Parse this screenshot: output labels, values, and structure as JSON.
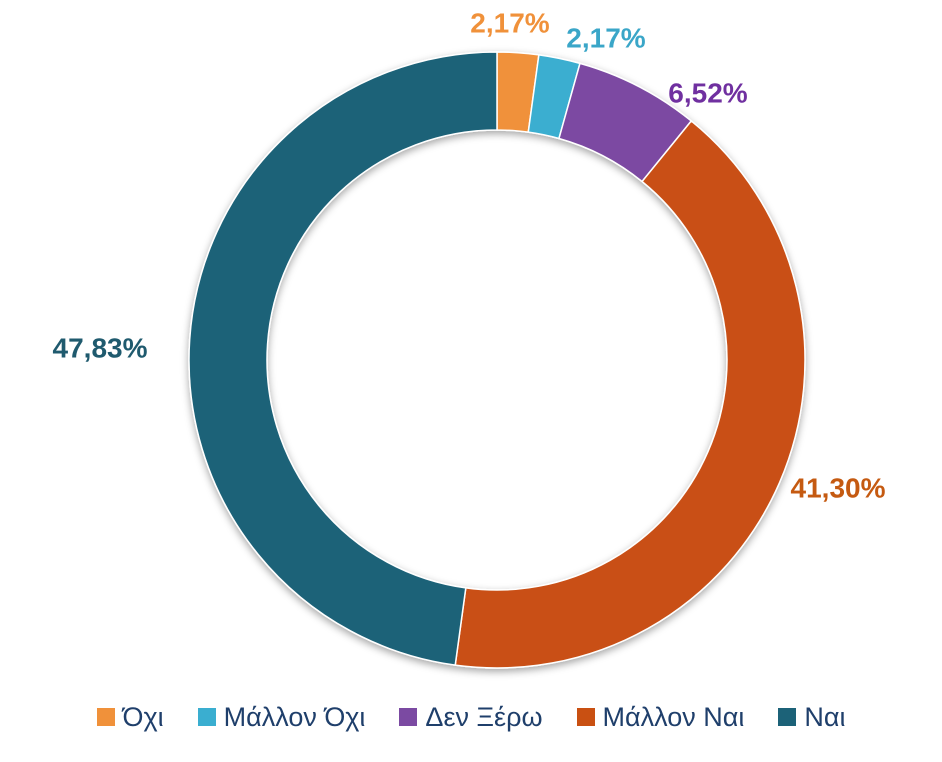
{
  "chart_data": {
    "type": "pie",
    "variant": "donut",
    "title": "",
    "categories": [
      "Όχι",
      "Μάλλον Όχι",
      "Δεν Ξέρω",
      "Μάλλον Ναι",
      "Ναι"
    ],
    "values": [
      2.17,
      2.17,
      6.52,
      41.3,
      47.83
    ],
    "data_labels": [
      "2,17%",
      "2,17%",
      "6,52%",
      "41,30%",
      "47,83%"
    ],
    "colors": [
      "#f0913a",
      "#3aaed0",
      "#7b4aa2",
      "#c95012",
      "#1c6278"
    ],
    "label_colors": [
      "#f0913a",
      "#3aa6c8",
      "#7030a0",
      "#c55a11",
      "#1f5a6e"
    ],
    "legend_position": "bottom",
    "start_angle": "12 o'clock, clockwise"
  },
  "legend": {
    "items": [
      {
        "label": "Όχι",
        "color": "#f0913a"
      },
      {
        "label": "Μάλλον Όχι",
        "color": "#3aaed0"
      },
      {
        "label": "Δεν Ξέρω",
        "color": "#7b4aa2"
      },
      {
        "label": "Μάλλον Ναι",
        "color": "#c95012"
      },
      {
        "label": "Ναι",
        "color": "#1c6278"
      }
    ]
  }
}
